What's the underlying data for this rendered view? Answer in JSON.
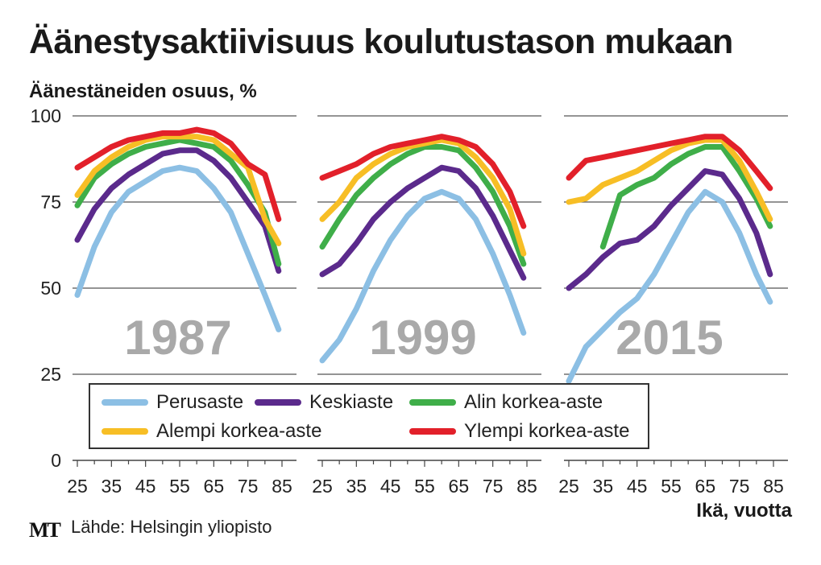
{
  "title": "Äänestysaktiivisuus koulutustason mukaan",
  "source": "Lähde: Helsingin yliopisto",
  "logo": "MT",
  "chart_data": {
    "type": "line",
    "ylabel": "Äänestäneiden osuus, %",
    "xlabel": "Ikä, vuotta",
    "ylim": [
      0,
      100
    ],
    "yticks": [
      "0",
      "25",
      "50",
      "75",
      "100"
    ],
    "xlim": [
      25,
      85
    ],
    "xticks": [
      "25",
      "35",
      "45",
      "55",
      "65",
      "75",
      "85"
    ],
    "grid": true,
    "legend_position": "bottom-center",
    "series_defs": [
      {
        "name": "Perusaste",
        "color": "#8cbfe4"
      },
      {
        "name": "Keskiaste",
        "color": "#5b2a8c"
      },
      {
        "name": "Alin korkea-aste",
        "color": "#3fae49"
      },
      {
        "name": "Alempi korkea-aste",
        "color": "#f7be25"
      },
      {
        "name": "Ylempi korkea-aste",
        "color": "#e2202a"
      }
    ],
    "panels": [
      {
        "year": "1987",
        "x": [
          25,
          30,
          35,
          40,
          45,
          50,
          55,
          60,
          65,
          70,
          75,
          80,
          84
        ],
        "series": [
          {
            "name": "Perusaste",
            "values": [
              48,
              62,
              72,
              78,
              81,
              84,
              85,
              84,
              79,
              72,
              60,
              48,
              38
            ]
          },
          {
            "name": "Keskiaste",
            "values": [
              64,
              73,
              79,
              83,
              86,
              89,
              90,
              90,
              87,
              82,
              75,
              68,
              55
            ]
          },
          {
            "name": "Alin korkea-aste",
            "values": [
              74,
              82,
              86,
              89,
              91,
              92,
              93,
              92,
              91,
              87,
              80,
              72,
              57
            ]
          },
          {
            "name": "Alempi korkea-aste",
            "values": [
              77,
              84,
              88,
              91,
              93,
              94,
              94,
              94,
              93,
              89,
              85,
              70,
              63
            ]
          },
          {
            "name": "Ylempi korkea-aste",
            "values": [
              85,
              88,
              91,
              93,
              94,
              95,
              95,
              96,
              95,
              92,
              86,
              83,
              70
            ]
          }
        ]
      },
      {
        "year": "1999",
        "x": [
          25,
          30,
          35,
          40,
          45,
          50,
          55,
          60,
          65,
          70,
          75,
          80,
          84
        ],
        "series": [
          {
            "name": "Perusaste",
            "values": [
              29,
              35,
              44,
              55,
              64,
              71,
              76,
              78,
              76,
              70,
              60,
              48,
              37
            ]
          },
          {
            "name": "Keskiaste",
            "values": [
              54,
              57,
              63,
              70,
              75,
              79,
              82,
              85,
              84,
              79,
              71,
              61,
              53
            ]
          },
          {
            "name": "Alin korkea-aste",
            "values": [
              62,
              70,
              77,
              82,
              86,
              89,
              91,
              91,
              90,
              85,
              78,
              68,
              57
            ]
          },
          {
            "name": "Alempi korkea-aste",
            "values": [
              70,
              75,
              82,
              86,
              89,
              91,
              92,
              93,
              92,
              88,
              82,
              73,
              60
            ]
          },
          {
            "name": "Ylempi korkea-aste",
            "values": [
              82,
              84,
              86,
              89,
              91,
              92,
              93,
              94,
              93,
              91,
              86,
              78,
              68
            ]
          }
        ]
      },
      {
        "year": "2015",
        "x": [
          25,
          30,
          35,
          40,
          45,
          50,
          55,
          60,
          65,
          70,
          75,
          80,
          84
        ],
        "series": [
          {
            "name": "Perusaste",
            "values": [
              23,
              33,
              38,
              43,
              47,
              54,
              63,
              72,
              78,
              75,
              66,
              54,
              46
            ]
          },
          {
            "name": "Keskiaste",
            "values": [
              50,
              54,
              59,
              63,
              64,
              68,
              74,
              79,
              84,
              83,
              76,
              66,
              54
            ]
          },
          {
            "name": "Alin korkea-aste",
            "values": [
              null,
              null,
              62,
              77,
              80,
              82,
              86,
              89,
              91,
              91,
              84,
              76,
              68
            ]
          },
          {
            "name": "Alempi korkea-aste",
            "values": [
              75,
              76,
              80,
              82,
              84,
              87,
              90,
              92,
              93,
              93,
              87,
              78,
              70
            ]
          },
          {
            "name": "Ylempi korkea-aste",
            "values": [
              82,
              87,
              88,
              89,
              90,
              91,
              92,
              93,
              94,
              94,
              90,
              84,
              79
            ]
          }
        ]
      }
    ]
  }
}
